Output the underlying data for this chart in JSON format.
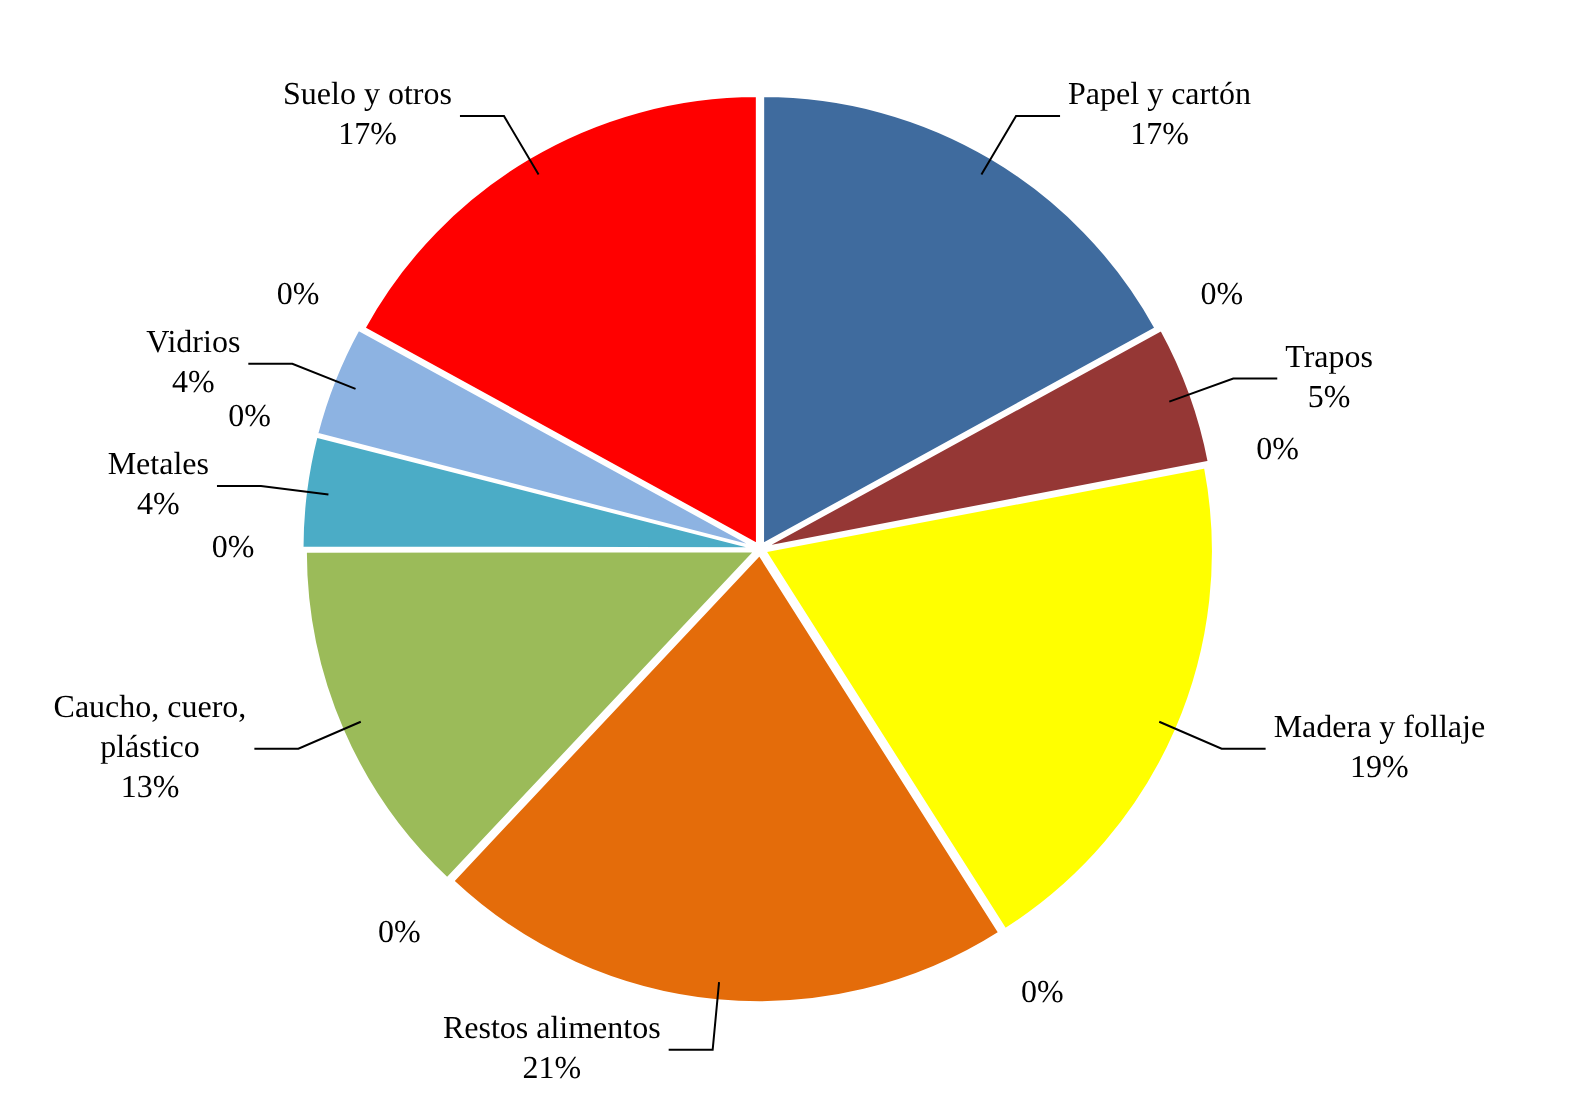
{
  "chart_data": {
    "type": "pie",
    "categories": [
      "Papel y cartón",
      null,
      "Trapos",
      null,
      "Madera y follaje",
      null,
      "Restos alimentos",
      null,
      "Caucho, cuero, plástico",
      null,
      "Metales",
      null,
      "Vidrios",
      null,
      "Suelo y otros"
    ],
    "values": [
      17,
      0,
      5,
      0,
      19,
      0,
      21,
      0,
      13,
      0,
      4,
      0,
      4,
      0,
      17
    ],
    "value_labels": [
      "17%",
      "0%",
      "5%",
      "0%",
      "19%",
      "0%",
      "21%",
      "0%",
      "13%",
      "0%",
      "4%",
      "0%",
      "4%",
      "0%",
      "17%"
    ],
    "colors": [
      "#3f6b9e",
      "#3f6b9e",
      "#953735",
      "#953735",
      "#ffff00",
      "#ffff00",
      "#e46c0a",
      "#e46c0a",
      "#9bbb59",
      "#9bbb59",
      "#4bacc6",
      "#4bacc6",
      "#8db3e2",
      "#8db3e2",
      "#ff0000"
    ],
    "legend": false
  }
}
